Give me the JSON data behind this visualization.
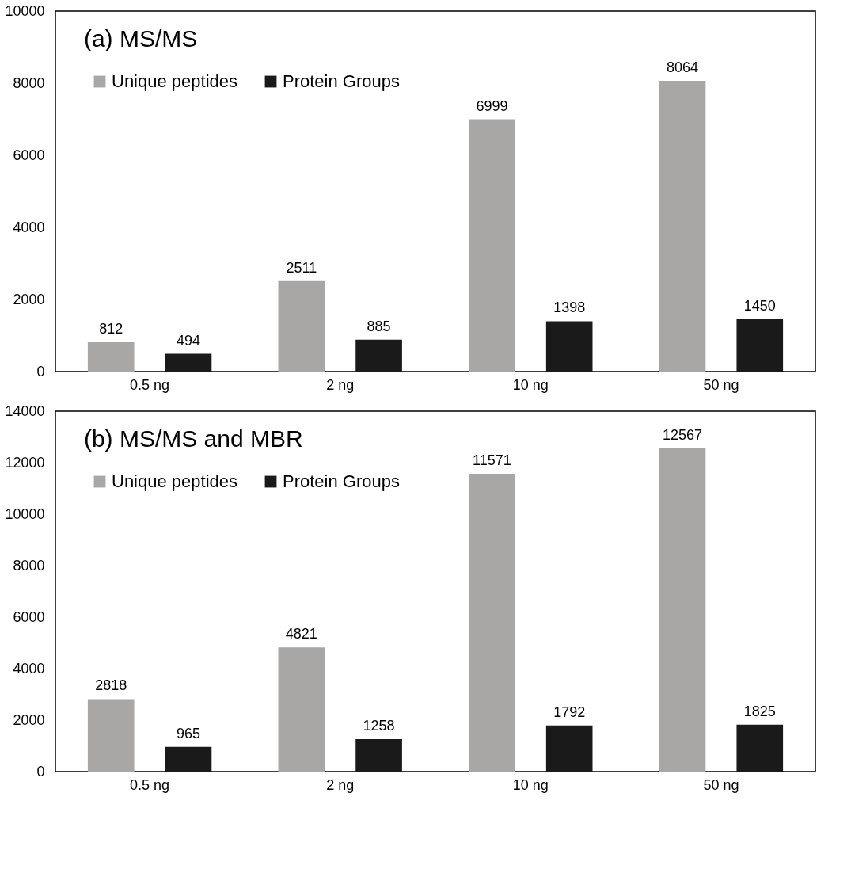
{
  "chart_data": [
    {
      "type": "bar",
      "title": "(a)  MS/MS",
      "categories": [
        "0.5 ng",
        "2 ng",
        "10 ng",
        "50 ng"
      ],
      "series": [
        {
          "name": "Unique peptides",
          "color": "#a9a7a6",
          "values": [
            812,
            2511,
            6999,
            8064
          ]
        },
        {
          "name": "Protein Groups",
          "color": "#1a1a1a",
          "values": [
            494,
            885,
            1398,
            1450
          ]
        }
      ],
      "ylim": [
        0,
        10000
      ],
      "yticks": [
        0,
        2000,
        4000,
        6000,
        8000,
        10000
      ],
      "data_labels": true,
      "legend": "top left"
    },
    {
      "type": "bar",
      "title": "(b) MS/MS and MBR",
      "categories": [
        "0.5 ng",
        "2 ng",
        "10 ng",
        "50 ng"
      ],
      "series": [
        {
          "name": "Unique peptides",
          "color": "#a9a7a6",
          "values": [
            2818,
            4821,
            11571,
            12567
          ]
        },
        {
          "name": "Protein Groups",
          "color": "#1a1a1a",
          "values": [
            965,
            1258,
            1792,
            1825
          ]
        }
      ],
      "ylim": [
        0,
        14000
      ],
      "yticks": [
        0,
        2000,
        4000,
        6000,
        8000,
        10000,
        12000,
        14000
      ],
      "data_labels": true,
      "legend": "top left"
    }
  ]
}
